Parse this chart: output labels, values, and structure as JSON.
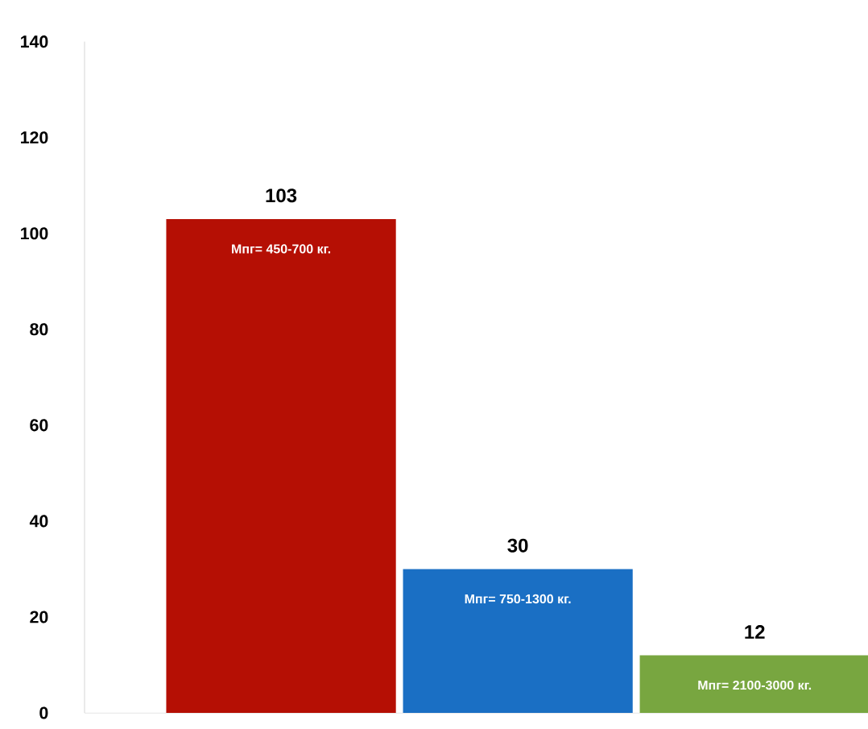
{
  "chart_data": {
    "type": "bar",
    "categories": [
      "Мпг= 450-700 кг.",
      "Мпг= 750-1300 кг.",
      "Мпг= 2100-3000 кг."
    ],
    "values": [
      103,
      30,
      12
    ],
    "colors": [
      "#b50f04",
      "#1a6fc4",
      "#78a640"
    ],
    "ylim": [
      0,
      140
    ],
    "yticks": [
      0,
      20,
      40,
      60,
      80,
      100,
      120,
      140
    ],
    "data_labels": true,
    "grid": false
  }
}
